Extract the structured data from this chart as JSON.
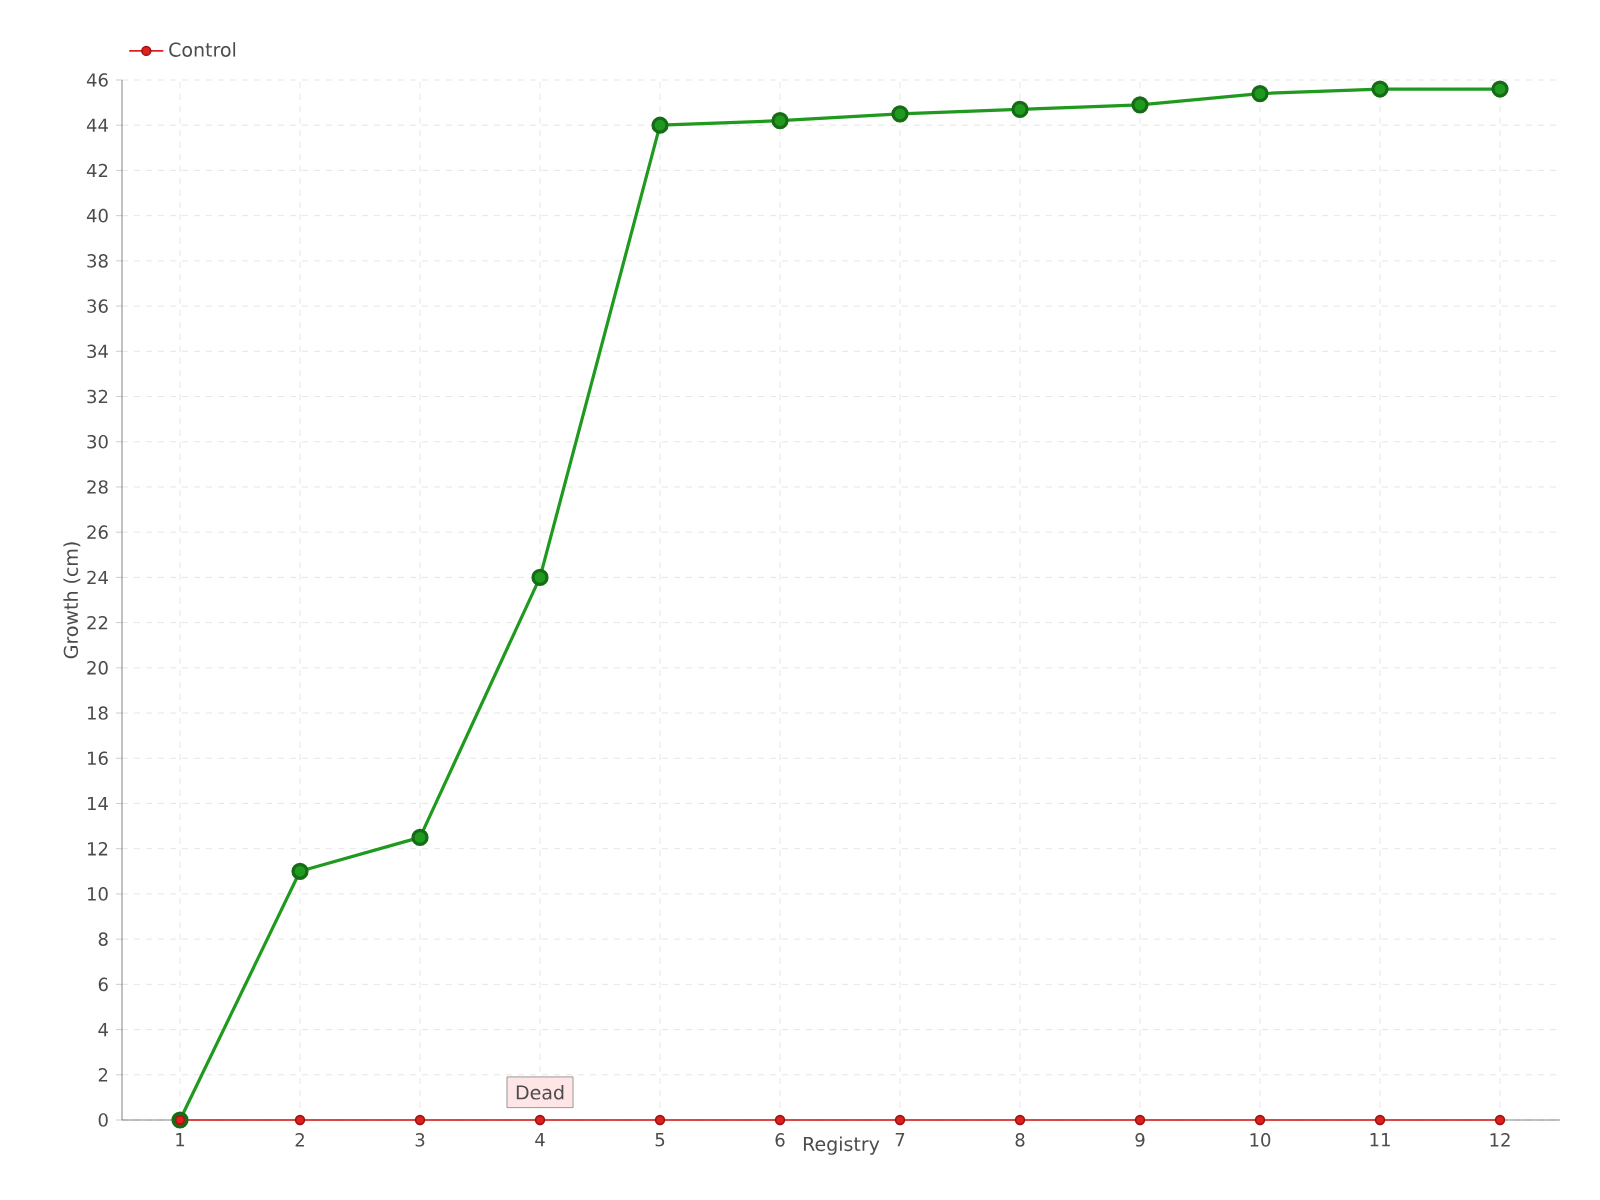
{
  "chart_data": {
    "type": "line",
    "xlabel": "Registry",
    "ylabel": "Growth (cm)",
    "categories": [
      "1",
      "2",
      "3",
      "4",
      "5",
      "6",
      "7",
      "8",
      "9",
      "10",
      "11",
      "12"
    ],
    "series": [
      {
        "color": "#1f9a1f",
        "values": [
          0,
          11,
          12.5,
          24,
          44,
          44.2,
          44.5,
          44.7,
          44.9,
          45.4,
          45.6,
          45.6
        ]
      },
      {
        "name": "Control",
        "color": "#e0201c",
        "values": [
          0,
          0,
          0,
          0,
          0,
          0,
          0,
          0,
          0,
          0,
          0,
          0
        ]
      }
    ],
    "ylim": [
      0,
      46
    ],
    "yticks": [
      0,
      2,
      4,
      6,
      8,
      10,
      12,
      14,
      16,
      18,
      20,
      22,
      24,
      26,
      28,
      30,
      32,
      34,
      36,
      38,
      40,
      42,
      44,
      46
    ],
    "grid": true,
    "legend": "top left",
    "marker": "circle",
    "annotations": [
      {
        "text": "Dead",
        "x": "4",
        "y": 0
      }
    ]
  }
}
